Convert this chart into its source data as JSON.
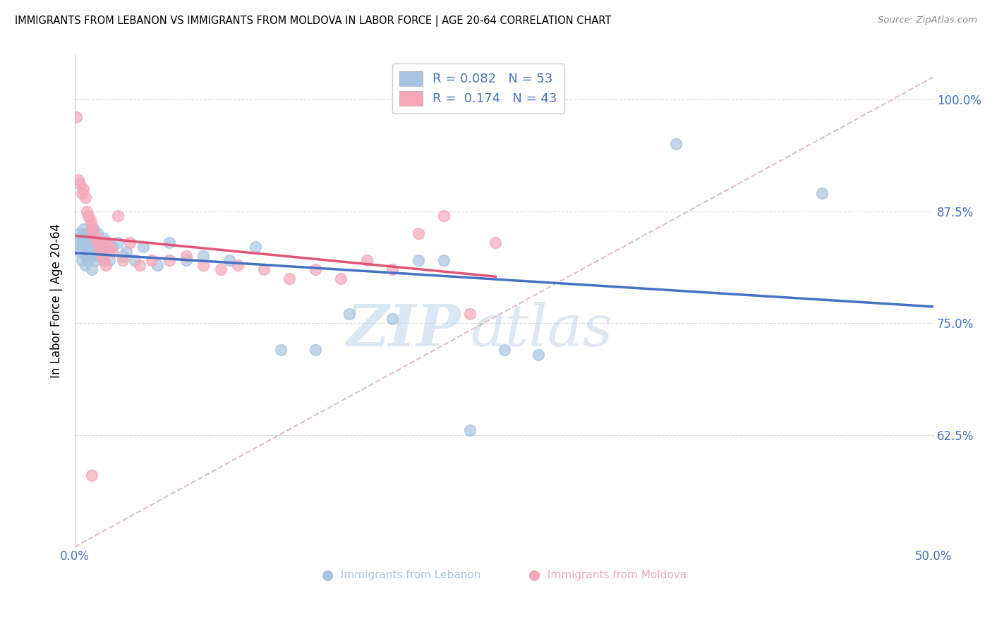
{
  "title": "IMMIGRANTS FROM LEBANON VS IMMIGRANTS FROM MOLDOVA IN LABOR FORCE | AGE 20-64 CORRELATION CHART",
  "source": "Source: ZipAtlas.com",
  "ylabel": "In Labor Force | Age 20-64",
  "xlim": [
    0.0,
    0.5
  ],
  "ylim": [
    0.5,
    1.05
  ],
  "xticks": [
    0.0,
    0.1,
    0.2,
    0.3,
    0.4,
    0.5
  ],
  "xticklabels": [
    "0.0%",
    "",
    "",
    "",
    "",
    "50.0%"
  ],
  "ytick_positions": [
    0.625,
    0.75,
    0.875,
    1.0
  ],
  "ytick_labels": [
    "62.5%",
    "75.0%",
    "87.5%",
    "100.0%"
  ],
  "lebanon_color": "#a8c4e0",
  "moldova_color": "#f4a7b9",
  "lebanon_line_color": "#4472c4",
  "moldova_line_color": "#e05575",
  "dashed_line_color": "#d8b0b8",
  "watermark_zip": "ZIP",
  "watermark_atlas": "atlas",
  "legend_r_lebanon": "R = 0.082",
  "legend_n_lebanon": "N = 53",
  "legend_r_moldova": "R = 0.174",
  "legend_n_moldova": "N = 43",
  "lebanon_scatter_x": [
    0.001,
    0.002,
    0.003,
    0.003,
    0.004,
    0.004,
    0.005,
    0.005,
    0.006,
    0.006,
    0.007,
    0.007,
    0.008,
    0.008,
    0.009,
    0.009,
    0.01,
    0.01,
    0.011,
    0.011,
    0.012,
    0.012,
    0.013,
    0.013,
    0.014,
    0.015,
    0.016,
    0.017,
    0.018,
    0.02,
    0.022,
    0.025,
    0.028,
    0.03,
    0.035,
    0.04,
    0.048,
    0.055,
    0.065,
    0.075,
    0.09,
    0.105,
    0.12,
    0.14,
    0.16,
    0.185,
    0.2,
    0.215,
    0.23,
    0.25,
    0.27,
    0.35,
    0.435
  ],
  "lebanon_scatter_y": [
    0.84,
    0.845,
    0.83,
    0.85,
    0.835,
    0.82,
    0.84,
    0.855,
    0.825,
    0.815,
    0.84,
    0.85,
    0.83,
    0.82,
    0.835,
    0.845,
    0.825,
    0.81,
    0.84,
    0.855,
    0.835,
    0.82,
    0.84,
    0.85,
    0.825,
    0.835,
    0.84,
    0.845,
    0.83,
    0.82,
    0.835,
    0.84,
    0.825,
    0.83,
    0.82,
    0.835,
    0.815,
    0.84,
    0.82,
    0.825,
    0.82,
    0.835,
    0.72,
    0.72,
    0.76,
    0.755,
    0.82,
    0.82,
    0.63,
    0.72,
    0.715,
    0.95,
    0.895
  ],
  "moldova_scatter_x": [
    0.001,
    0.002,
    0.003,
    0.004,
    0.005,
    0.006,
    0.007,
    0.008,
    0.009,
    0.01,
    0.01,
    0.011,
    0.012,
    0.013,
    0.014,
    0.015,
    0.016,
    0.017,
    0.018,
    0.019,
    0.02,
    0.022,
    0.025,
    0.028,
    0.032,
    0.038,
    0.045,
    0.055,
    0.065,
    0.075,
    0.085,
    0.095,
    0.11,
    0.125,
    0.14,
    0.155,
    0.17,
    0.185,
    0.2,
    0.215,
    0.23,
    0.245,
    0.01
  ],
  "moldova_scatter_y": [
    0.98,
    0.91,
    0.905,
    0.895,
    0.9,
    0.89,
    0.875,
    0.87,
    0.865,
    0.86,
    0.855,
    0.85,
    0.845,
    0.84,
    0.835,
    0.83,
    0.825,
    0.82,
    0.815,
    0.84,
    0.835,
    0.83,
    0.87,
    0.82,
    0.84,
    0.815,
    0.82,
    0.82,
    0.825,
    0.815,
    0.81,
    0.815,
    0.81,
    0.8,
    0.81,
    0.8,
    0.82,
    0.81,
    0.85,
    0.87,
    0.76,
    0.84,
    0.58
  ]
}
